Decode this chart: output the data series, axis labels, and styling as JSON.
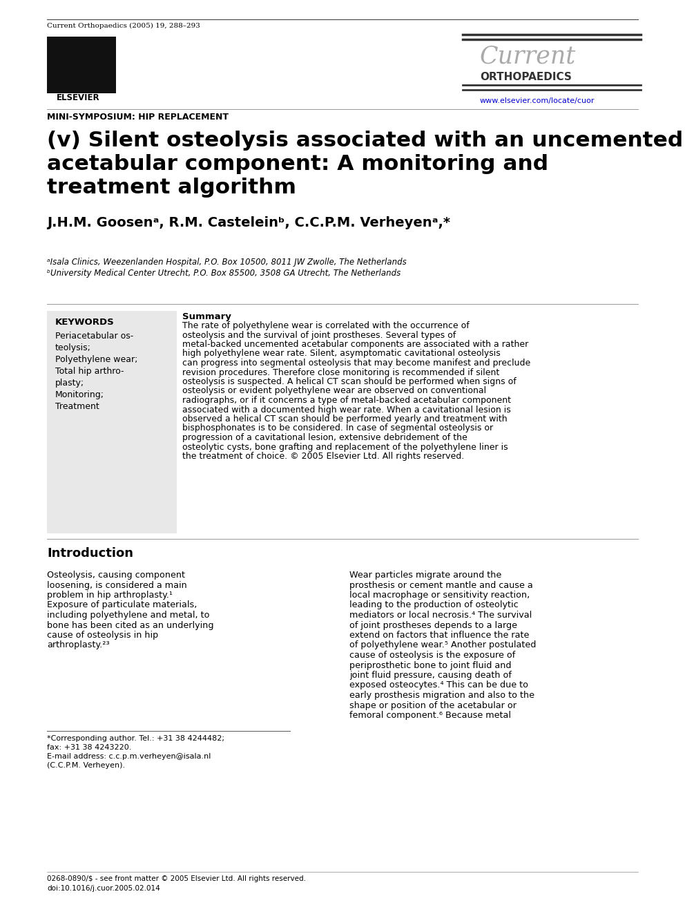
{
  "bg_color": "#ffffff",
  "journal_ref": "Current Orthopaedics (2005) 19, 288–293",
  "journal_name_line1": "Current",
  "journal_name_line2": "ORTHOPAEDICS",
  "journal_url": "www.elsevier.com/locate/cuor",
  "mini_symposium": "MINI-SYMPOSIUM: HIP REPLACEMENT",
  "article_title_line1": "(v) Silent osteolysis associated with an uncemented",
  "article_title_line2": "acetabular component: A monitoring and",
  "article_title_line3": "treatment algorithm",
  "authors": "J.H.M. Goosenᵃ, R.M. Casteleinᵇ, C.C.P.M. Verheyenᵃ,*",
  "affil_a": "ᵃIsala Clinics, Weezenlanden Hospital, P.O. Box 10500, 8011 JW Zwolle, The Netherlands",
  "affil_b": "ᵇUniversity Medical Center Utrecht, P.O. Box 85500, 3508 GA Utrecht, The Netherlands",
  "footnote_star": "*Corresponding author. Tel.: +31 38 4244482;",
  "footnote_fax": "fax: +31 38 4243220.",
  "footnote_email": "E-mail address: c.c.p.m.verheyen@isala.nl",
  "footnote_parens": "(C.C.P.M. Verheyen).",
  "keywords_title": "KEYWORDS",
  "keywords_list": [
    "Periacetabular os-",
    "teolysis;",
    "Polyethylene wear;",
    "Total hip arthro-",
    "plasty;",
    "Monitoring;",
    "Treatment"
  ],
  "summary_label": "Summary",
  "summary_text": "The rate of polyethylene wear is correlated with the occurrence of osteolysis and the survival of joint prostheses. Several types of metal-backed uncemented acetabular components are associated with a rather high polyethylene wear rate. Silent, asymptomatic cavitational osteolysis can progress into segmental osteolysis that may become manifest and preclude revision procedures. Therefore close monitoring is recommended if silent osteolysis is suspected. A helical CT scan should be performed when signs of osteolysis or evident polyethylene wear are observed on conventional radiographs, or if it concerns a type of metal-backed acetabular component associated with a documented high wear rate. When a cavitational lesion is observed a helical CT scan should be performed yearly and treatment with bisphosphonates is to be considered. In case of segmental osteolysis or progression of a cavitational lesion, extensive debridement of the osteolytic cysts, bone grafting and replacement of the polyethylene liner is the treatment of choice. © 2005 Elsevier Ltd. All rights reserved.",
  "intro_heading": "Introduction",
  "intro_col1": "Osteolysis, causing component loosening, is considered a main problem in hip arthroplasty.¹ Exposure of particulate materials, including polyethylene and metal, to bone has been cited as an underlying cause of osteolysis in hip arthroplasty.²³",
  "intro_col2": "Wear particles migrate around the prosthesis or cement mantle and cause a local macrophage or sensitivity reaction, leading to the production of osteolytic mediators or local necrosis.⁴ The survival of joint prostheses depends to a large extend on factors that influence the rate of polyethylene wear.⁵ Another postulated cause of osteolysis is the exposure of periprosthetic bone to joint fluid and joint fluid pressure, causing death of exposed osteocytes.⁴ This can be due to early prosthesis migration and also to the shape or position of the acetabular or femoral component.⁶ Because metal",
  "bottom_ref1": "0268-0890/$ - see front matter © 2005 Elsevier Ltd. All rights reserved.",
  "bottom_ref2": "doi:10.1016/j.cuor.2005.02.014",
  "keywords_box_color": "#e8e8e8",
  "url_color": "#0000cc",
  "separator_color": "#555555",
  "title_fontsize": 22.5,
  "authors_fontsize": 14,
  "affil_fontsize": 8.5,
  "body_fontsize": 9.2,
  "small_fontsize": 8.0,
  "summary_fontsize": 9.0,
  "kw_title_fontsize": 9.5,
  "mini_sym_fontsize": 9.0
}
